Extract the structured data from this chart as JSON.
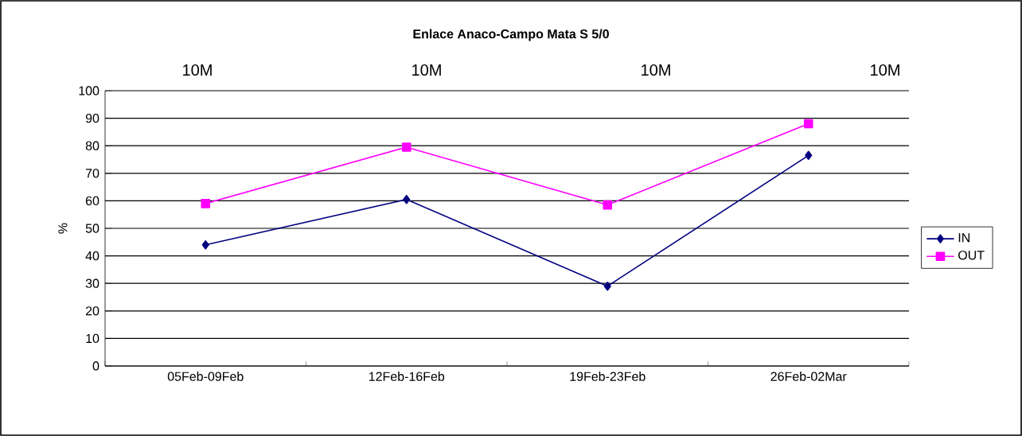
{
  "chart_data": {
    "type": "line",
    "title": "Enlace Anaco-Campo Mata S 5/0",
    "ylabel": "%",
    "categories": [
      "05Feb-09Feb",
      "12Feb-16Feb",
      "19Feb-23Feb",
      "26Feb-02Mar"
    ],
    "series": [
      {
        "name": "IN",
        "color": "#000080",
        "marker": "diamond",
        "values": [
          44,
          60.5,
          29,
          76.5
        ]
      },
      {
        "name": "OUT",
        "color": "#ff00ff",
        "marker": "square",
        "values": [
          59,
          79.5,
          58.5,
          88
        ]
      }
    ],
    "ylim": [
      0,
      100
    ],
    "yticks": [
      0,
      10,
      20,
      30,
      40,
      50,
      60,
      70,
      80,
      90,
      100
    ],
    "annotations": [
      "10M",
      "10M",
      "10M",
      "10M"
    ],
    "grid": "y",
    "legend": "right"
  }
}
